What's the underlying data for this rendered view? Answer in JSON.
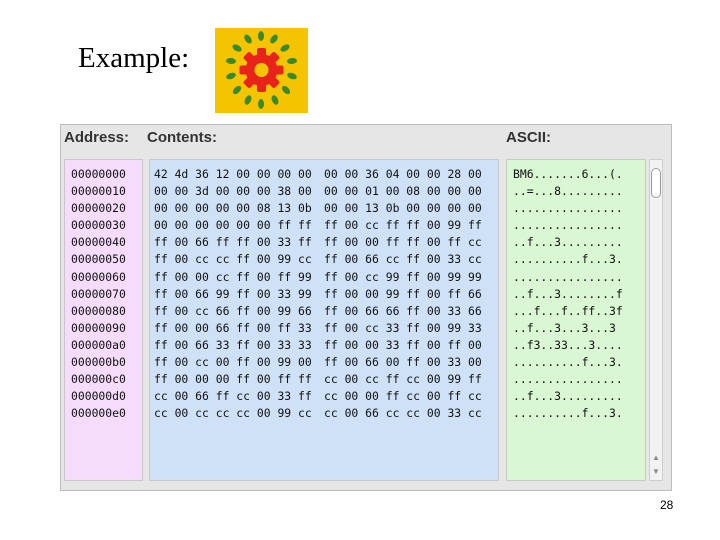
{
  "slide": {
    "title": "Example:",
    "page_number": "28"
  },
  "logo": {
    "icon": "gear-wreath-icon",
    "background": "#f5c400",
    "gear_color": "#e8231a",
    "leaf_color": "#3a8a2a"
  },
  "window": {
    "headers": {
      "address": "Address:",
      "contents": "Contents:",
      "ascii": "ASCII:"
    },
    "colors": {
      "address_bg": "#f5dcfb",
      "contents_bg": "#cfe1f7",
      "ascii_bg": "#d9f7d2"
    },
    "rows": [
      {
        "address": "00000000",
        "hex1": "42 4d 36 12 00 00 00 00",
        "hex2": "00 00 36 04 00 00 28 00",
        "ascii": "BM6.......6...(."
      },
      {
        "address": "00000010",
        "hex1": "00 00 3d 00 00 00 38 00",
        "hex2": "00 00 01 00 08 00 00 00",
        "ascii": "..=...8........."
      },
      {
        "address": "00000020",
        "hex1": "00 00 00 00 00 08 13 0b",
        "hex2": "00 00 13 0b 00 00 00 00",
        "ascii": "................"
      },
      {
        "address": "00000030",
        "hex1": "00 00 00 00 00 00 ff ff",
        "hex2": "ff 00 cc ff ff 00 99 ff",
        "ascii": "................"
      },
      {
        "address": "00000040",
        "hex1": "ff 00 66 ff ff 00 33 ff",
        "hex2": "ff 00 00 ff ff 00 ff cc",
        "ascii": "..f...3........."
      },
      {
        "address": "00000050",
        "hex1": "ff 00 cc cc ff 00 99 cc",
        "hex2": "ff 00 66 cc ff 00 33 cc",
        "ascii": "..........f...3."
      },
      {
        "address": "00000060",
        "hex1": "ff 00 00 cc ff 00 ff 99",
        "hex2": "ff 00 cc 99 ff 00 99 99",
        "ascii": "................"
      },
      {
        "address": "00000070",
        "hex1": "ff 00 66 99 ff 00 33 99",
        "hex2": "ff 00 00 99 ff 00 ff 66",
        "ascii": "..f...3........f"
      },
      {
        "address": "00000080",
        "hex1": "ff 00 cc 66 ff 00 99 66",
        "hex2": "ff 00 66 66 ff 00 33 66",
        "ascii": "...f...f..ff..3f"
      },
      {
        "address": "00000090",
        "hex1": "ff 00 00 66 ff 00 ff 33",
        "hex2": "ff 00 cc 33 ff 00 99 33",
        "ascii": "..f...3...3...3"
      },
      {
        "address": "000000a0",
        "hex1": "ff 00 66 33 ff 00 33 33",
        "hex2": "ff 00 00 33 ff 00 ff 00",
        "ascii": "..f3..33...3...."
      },
      {
        "address": "000000b0",
        "hex1": "ff 00 cc 00 ff 00 99 00",
        "hex2": "ff 00 66 00 ff 00 33 00",
        "ascii": "..........f...3."
      },
      {
        "address": "000000c0",
        "hex1": "ff 00 00 00 ff 00 ff ff",
        "hex2": "cc 00 cc ff cc 00 99 ff",
        "ascii": "................"
      },
      {
        "address": "000000d0",
        "hex1": "cc 00 66 ff cc 00 33 ff",
        "hex2": "cc 00 00 ff cc 00 ff cc",
        "ascii": "..f...3........."
      },
      {
        "address": "000000e0",
        "hex1": "cc 00 cc cc cc 00 99 cc",
        "hex2": "cc 00 66 cc cc 00 33 cc",
        "ascii": "..........f...3."
      }
    ]
  }
}
